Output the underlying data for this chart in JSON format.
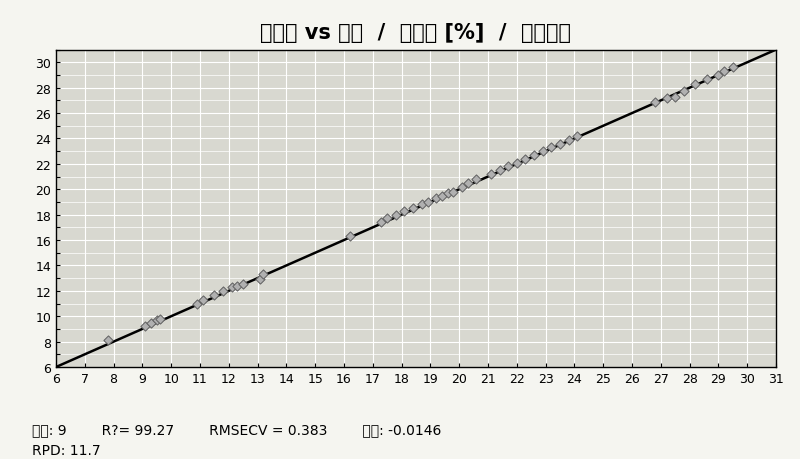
{
  "title": "预测值 vs 真值  /  聚戊糖 [%]  /  交叉检验",
  "xlim": [
    6,
    31
  ],
  "ylim": [
    6,
    31
  ],
  "scatter_x": [
    7.8,
    9.1,
    9.3,
    9.5,
    9.6,
    10.9,
    11.1,
    11.5,
    11.8,
    12.1,
    12.3,
    12.5,
    13.1,
    13.2,
    16.2,
    17.3,
    17.5,
    17.8,
    18.1,
    18.4,
    18.7,
    18.9,
    19.2,
    19.4,
    19.6,
    19.8,
    20.1,
    20.3,
    20.6,
    21.1,
    21.4,
    21.7,
    22.0,
    22.3,
    22.6,
    22.9,
    23.2,
    23.5,
    23.8,
    24.1,
    26.8,
    27.2,
    27.5,
    27.8,
    28.2,
    28.6,
    29.0,
    29.2,
    29.5
  ],
  "scatter_y": [
    8.1,
    9.2,
    9.5,
    9.7,
    9.8,
    11.0,
    11.3,
    11.7,
    12.0,
    12.3,
    12.4,
    12.5,
    12.9,
    13.3,
    16.3,
    17.4,
    17.7,
    18.0,
    18.3,
    18.5,
    18.8,
    19.0,
    19.3,
    19.5,
    19.7,
    19.8,
    20.2,
    20.5,
    20.8,
    21.2,
    21.5,
    21.8,
    22.1,
    22.4,
    22.7,
    23.0,
    23.3,
    23.6,
    23.9,
    24.2,
    26.9,
    27.2,
    27.3,
    27.7,
    28.3,
    28.7,
    29.0,
    29.3,
    29.6
  ],
  "line_x": [
    6,
    31
  ],
  "line_y": [
    6,
    31
  ],
  "line_color": "#000000",
  "marker_facecolor": "#b0b0b0",
  "marker_edgecolor": "#606060",
  "plot_bg_color": "#d8d8d0",
  "fig_bg_color": "#f5f5f0",
  "grid_color": "#ffffff",
  "stats_line1": "维数: 9        R?= 99.27        RMSECV = 0.383        偏移: -0.0146",
  "stats_line2": "RPD: 11.7",
  "title_fontsize": 15,
  "stats_fontsize": 10,
  "tick_fontsize": 9
}
